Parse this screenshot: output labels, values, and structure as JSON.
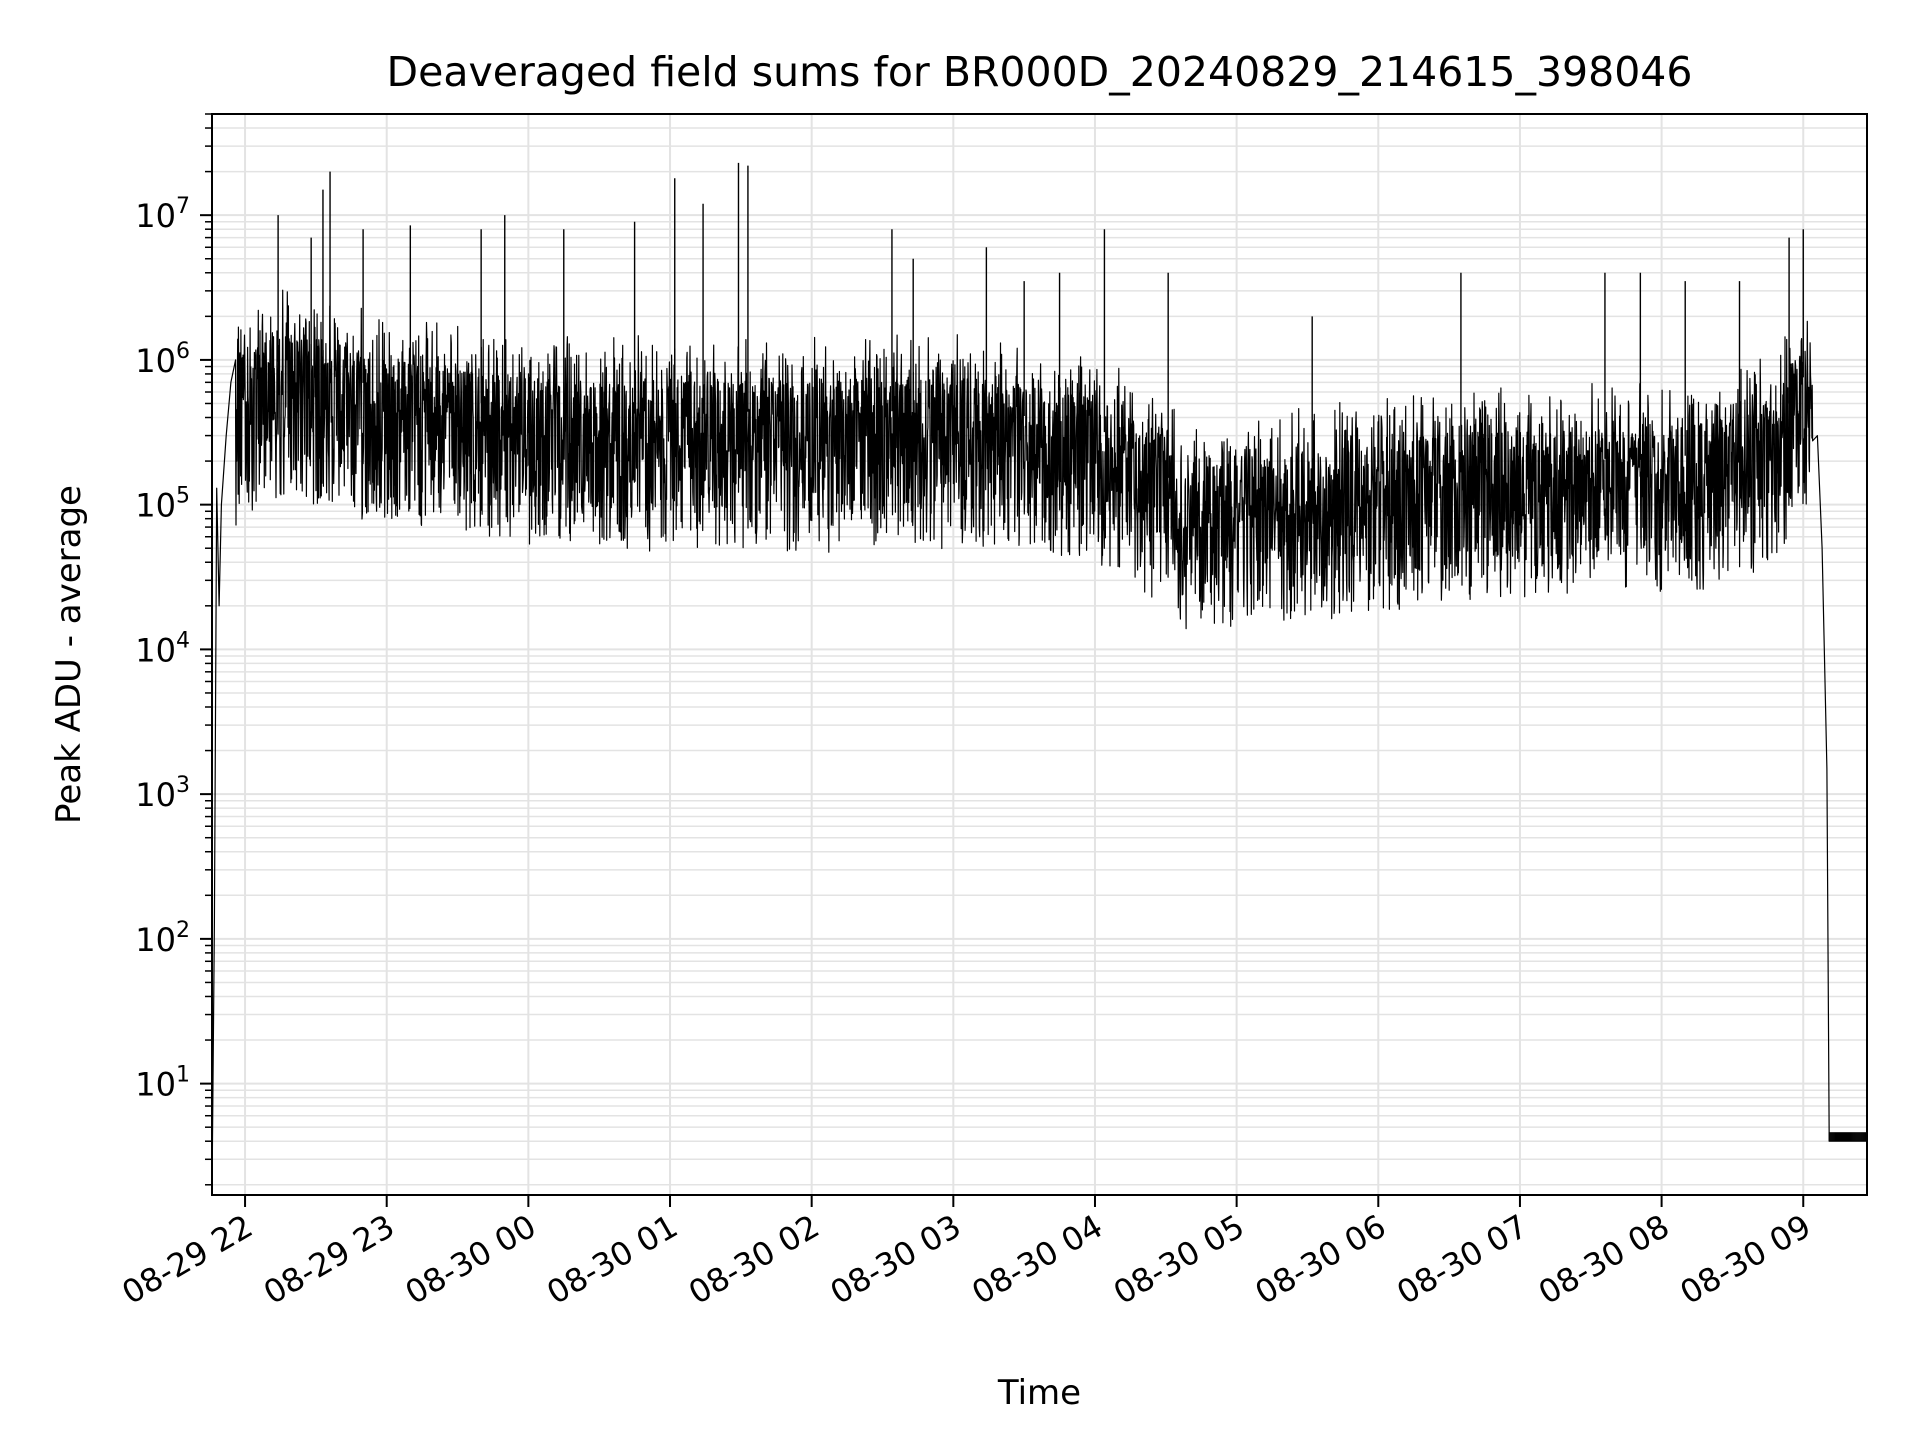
{
  "chart_data": {
    "type": "line",
    "title": "Deaveraged field sums for BR000D_20240829_214615_398046",
    "xlabel": "Time",
    "ylabel": "Peak ADU - average",
    "y_scale": "log",
    "ylim": [
      1.7,
      50000000
    ],
    "xlim": [
      "2024-08-29T21:46",
      "2024-08-30T09:27"
    ],
    "grid": true,
    "line_color": "#000000",
    "grid_color": "#e3e3e3",
    "x_ticks": [
      {
        "t": "2024-08-29T22:00",
        "label": "08-29 22"
      },
      {
        "t": "2024-08-29T23:00",
        "label": "08-29 23"
      },
      {
        "t": "2024-08-30T00:00",
        "label": "08-30 00"
      },
      {
        "t": "2024-08-30T01:00",
        "label": "08-30 01"
      },
      {
        "t": "2024-08-30T02:00",
        "label": "08-30 02"
      },
      {
        "t": "2024-08-30T03:00",
        "label": "08-30 03"
      },
      {
        "t": "2024-08-30T04:00",
        "label": "08-30 04"
      },
      {
        "t": "2024-08-30T05:00",
        "label": "08-30 05"
      },
      {
        "t": "2024-08-30T06:00",
        "label": "08-30 06"
      },
      {
        "t": "2024-08-30T07:00",
        "label": "08-30 07"
      },
      {
        "t": "2024-08-30T08:00",
        "label": "08-30 08"
      },
      {
        "t": "2024-08-30T09:00",
        "label": "08-30 09"
      }
    ],
    "y_ticks": [
      {
        "v": 10,
        "base": "10",
        "exp": "1"
      },
      {
        "v": 100,
        "base": "10",
        "exp": "2"
      },
      {
        "v": 1000,
        "base": "10",
        "exp": "3"
      },
      {
        "v": 10000,
        "base": "10",
        "exp": "4"
      },
      {
        "v": 100000,
        "base": "10",
        "exp": "5"
      },
      {
        "v": 1000000,
        "base": "10",
        "exp": "6"
      },
      {
        "v": 10000000,
        "base": "10",
        "exp": "7"
      }
    ],
    "series": [
      {
        "points": [
          [
            "2024-08-29T21:46",
            1.7
          ],
          [
            "2024-08-29T21:47",
            130
          ],
          [
            "2024-08-29T21:48",
            130000
          ],
          [
            "2024-08-29T21:49",
            20000
          ],
          [
            "2024-08-29T21:50",
            100000
          ],
          [
            "2024-08-29T21:52",
            300000
          ],
          [
            "2024-08-29T21:54",
            700000
          ],
          [
            "2024-08-29T21:56",
            1000000
          ],
          [
            "2024-08-29T22:00",
            1200000
          ],
          [
            "2024-08-29T22:10",
            1500000
          ],
          [
            "2024-08-29T22:20",
            1600000
          ],
          [
            "2024-08-29T22:30",
            1400000
          ],
          [
            "2024-08-29T22:40",
            1300000
          ],
          [
            "2024-08-29T22:50",
            1100000
          ],
          [
            "2024-08-29T23:00",
            1000000
          ],
          [
            "2024-08-29T23:20",
            900000
          ],
          [
            "2024-08-29T23:40",
            800000
          ],
          [
            "2024-08-30T00:00",
            750000
          ],
          [
            "2024-08-30T00:30",
            700000
          ],
          [
            "2024-08-30T01:00",
            650000
          ],
          [
            "2024-08-30T01:30",
            700000
          ],
          [
            "2024-08-30T02:00",
            650000
          ],
          [
            "2024-08-30T02:30",
            700000
          ],
          [
            "2024-08-30T03:00",
            700000
          ],
          [
            "2024-08-30T03:30",
            650000
          ],
          [
            "2024-08-30T04:00",
            550000
          ],
          [
            "2024-08-30T04:20",
            350000
          ],
          [
            "2024-08-30T04:40",
            180000
          ],
          [
            "2024-08-30T05:00",
            200000
          ],
          [
            "2024-08-30T05:30",
            220000
          ],
          [
            "2024-08-30T06:00",
            250000
          ],
          [
            "2024-08-30T06:30",
            300000
          ],
          [
            "2024-08-30T07:00",
            320000
          ],
          [
            "2024-08-30T07:30",
            330000
          ],
          [
            "2024-08-30T08:00",
            320000
          ],
          [
            "2024-08-30T08:30",
            400000
          ],
          [
            "2024-08-30T08:50",
            600000
          ],
          [
            "2024-08-30T09:00",
            1200000
          ],
          [
            "2024-08-30T09:03",
            1000000
          ],
          [
            "2024-08-30T09:06",
            300000
          ],
          [
            "2024-08-30T09:08",
            50000
          ],
          [
            "2024-08-30T09:10",
            1500
          ],
          [
            "2024-08-30T09:11",
            4
          ],
          [
            "2024-08-30T09:27",
            4
          ]
        ]
      }
    ],
    "spikes": [
      [
        "2024-08-29T22:14",
        10000000
      ],
      [
        "2024-08-29T22:28",
        7000000
      ],
      [
        "2024-08-29T22:33",
        15000000
      ],
      [
        "2024-08-29T22:36",
        20000000
      ],
      [
        "2024-08-29T22:50",
        8000000
      ],
      [
        "2024-08-29T23:10",
        8500000
      ],
      [
        "2024-08-29T23:40",
        8000000
      ],
      [
        "2024-08-29T23:50",
        10000000
      ],
      [
        "2024-08-30T00:15",
        8000000
      ],
      [
        "2024-08-30T00:45",
        9000000
      ],
      [
        "2024-08-30T01:02",
        18000000
      ],
      [
        "2024-08-30T01:14",
        12000000
      ],
      [
        "2024-08-30T01:29",
        23000000
      ],
      [
        "2024-08-30T01:33",
        22000000
      ],
      [
        "2024-08-30T02:34",
        8000000
      ],
      [
        "2024-08-30T02:43",
        5000000
      ],
      [
        "2024-08-30T03:14",
        6000000
      ],
      [
        "2024-08-30T03:30",
        3500000
      ],
      [
        "2024-08-30T03:45",
        4000000
      ],
      [
        "2024-08-30T04:04",
        8000000
      ],
      [
        "2024-08-30T04:31",
        4000000
      ],
      [
        "2024-08-30T05:32",
        2000000
      ],
      [
        "2024-08-30T06:35",
        4000000
      ],
      [
        "2024-08-30T07:36",
        4000000
      ],
      [
        "2024-08-30T07:51",
        4000000
      ],
      [
        "2024-08-30T08:10",
        3500000
      ],
      [
        "2024-08-30T08:33",
        3500000
      ],
      [
        "2024-08-30T08:54",
        7000000
      ],
      [
        "2024-08-30T09:00",
        8000000
      ]
    ]
  }
}
